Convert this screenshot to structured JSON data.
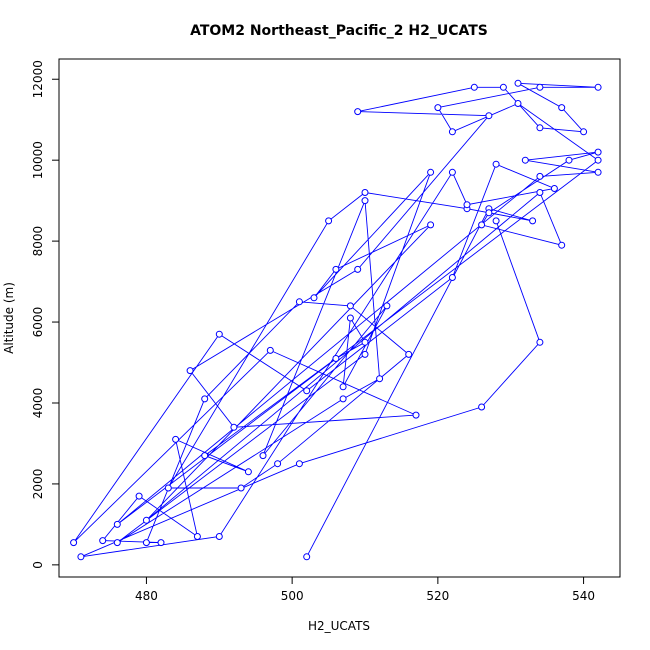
{
  "chart_data": {
    "type": "line",
    "title": "ATOM2 Northeast_Pacific_2 H2_UCATS",
    "xlabel": "H2_UCATS",
    "ylabel": "Altitude (m)",
    "xlim": [
      468,
      545
    ],
    "ylim": [
      -300,
      12500
    ],
    "xticks": [
      480,
      500,
      520,
      540
    ],
    "yticks": [
      0,
      2000,
      4000,
      6000,
      8000,
      10000,
      12000
    ],
    "grid": false,
    "line_color": "#0000ff",
    "series": [
      {
        "marker": "open-circle",
        "points": [
          [
            502,
            200
          ],
          [
            527,
            8800
          ],
          [
            533,
            8500
          ],
          [
            524,
            8800
          ],
          [
            510,
            9200
          ],
          [
            505,
            8500
          ],
          [
            483,
            1900
          ],
          [
            493,
            1900
          ],
          [
            498,
            2500
          ],
          [
            516,
            5200
          ],
          [
            508,
            6400
          ],
          [
            501,
            6500
          ],
          [
            488,
            4100
          ],
          [
            480,
            550
          ],
          [
            482,
            550
          ],
          [
            474,
            600
          ],
          [
            479,
            1700
          ],
          [
            487,
            700
          ],
          [
            484,
            3100
          ],
          [
            494,
            2300
          ],
          [
            488,
            2700
          ],
          [
            506,
            5100
          ],
          [
            510,
            5500
          ],
          [
            508,
            6100
          ],
          [
            507,
            4400
          ],
          [
            513,
            6400
          ],
          [
            496,
            2700
          ],
          [
            510,
            9000
          ],
          [
            512,
            4600
          ],
          [
            507,
            4100
          ],
          [
            476,
            550
          ],
          [
            510,
            5200
          ],
          [
            519,
            9700
          ],
          [
            503,
            6600
          ],
          [
            506,
            7300
          ],
          [
            519,
            8400
          ],
          [
            480,
            1100
          ],
          [
            534,
            9200
          ],
          [
            537,
            7900
          ],
          [
            526,
            8400
          ],
          [
            527,
            8700
          ],
          [
            538,
            10000
          ],
          [
            542,
            10200
          ],
          [
            532,
            10000
          ],
          [
            542,
            9700
          ],
          [
            534,
            9600
          ],
          [
            476,
            1000
          ],
          [
            542,
            10000
          ],
          [
            531,
            11400
          ],
          [
            522,
            10700
          ],
          [
            520,
            11300
          ],
          [
            534,
            11800
          ],
          [
            542,
            11800
          ],
          [
            531,
            11900
          ],
          [
            537,
            11300
          ],
          [
            540,
            10700
          ],
          [
            534,
            10800
          ],
          [
            529,
            11800
          ],
          [
            525,
            11800
          ],
          [
            509,
            11200
          ],
          [
            527,
            11100
          ],
          [
            509,
            7300
          ],
          [
            486,
            4800
          ],
          [
            492,
            3400
          ],
          [
            517,
            3700
          ],
          [
            497,
            5300
          ],
          [
            470,
            550
          ],
          [
            490,
            5700
          ],
          [
            502,
            4300
          ],
          [
            522,
            7100
          ],
          [
            528,
            9900
          ],
          [
            536,
            9300
          ],
          [
            524,
            8900
          ],
          [
            522,
            9700
          ],
          [
            490,
            700
          ],
          [
            471,
            200
          ],
          [
            501,
            2500
          ],
          [
            526,
            3900
          ],
          [
            534,
            5500
          ],
          [
            528,
            8500
          ]
        ]
      }
    ]
  }
}
